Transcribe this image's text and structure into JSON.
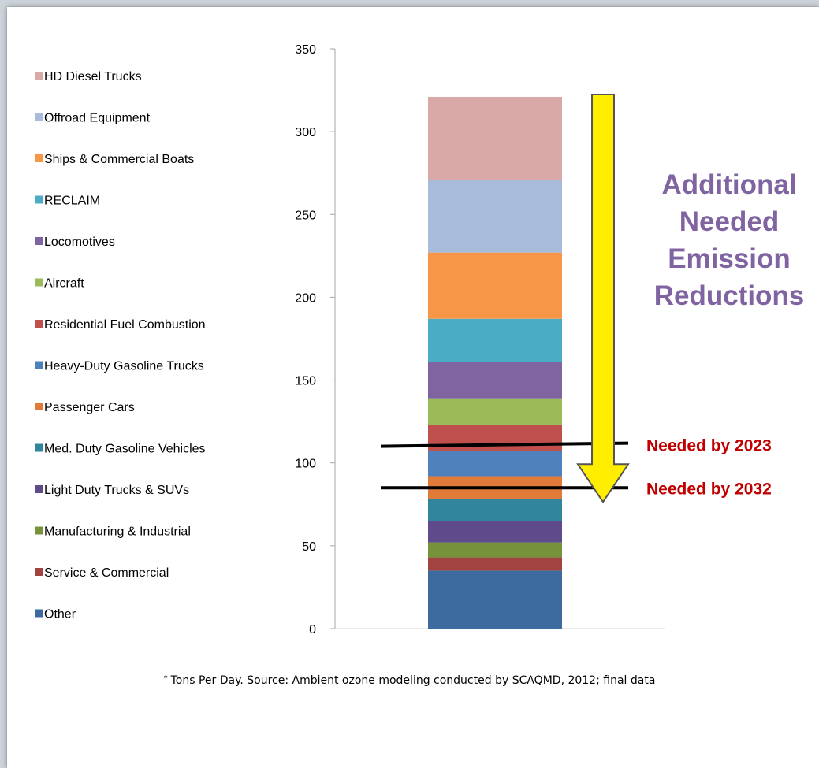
{
  "chart_data": {
    "type": "bar",
    "stacked": true,
    "categories": [
      ""
    ],
    "ylim": [
      0,
      350
    ],
    "yticks": [
      0,
      50,
      100,
      150,
      200,
      250,
      300,
      350
    ],
    "grid": false,
    "legend_position": "left",
    "series": [
      {
        "name": "Other",
        "value": 35,
        "color": "#3d6ba0"
      },
      {
        "name": "Service & Commercial",
        "value": 8,
        "color": "#a3433f"
      },
      {
        "name": "Manufacturing & Industrial",
        "value": 9,
        "color": "#76933c"
      },
      {
        "name": "Light Duty Trucks & SUVs",
        "value": 13,
        "color": "#5f4b8b"
      },
      {
        "name": "Med. Duty Gasoline Vehicles",
        "value": 13,
        "color": "#31859c"
      },
      {
        "name": "Passenger Cars",
        "value": 14,
        "color": "#e07b39"
      },
      {
        "name": "Heavy-Duty Gasoline Trucks",
        "value": 15,
        "color": "#4f81bd"
      },
      {
        "name": "Residential Fuel Combustion",
        "value": 16,
        "color": "#c0504d"
      },
      {
        "name": "Aircraft",
        "value": 16,
        "color": "#9bbb59"
      },
      {
        "name": "Locomotives",
        "value": 22,
        "color": "#8064a2"
      },
      {
        "name": "RECLAIM",
        "value": 26,
        "color": "#4bacc6"
      },
      {
        "name": "Ships & Commercial Boats",
        "value": 40,
        "color": "#f79646"
      },
      {
        "name": "Offroad Equipment",
        "value": 44,
        "color": "#a9bbda"
      },
      {
        "name": "HD Diesel Trucks",
        "value": 50,
        "color": "#d9a9a8"
      }
    ],
    "targets": [
      {
        "label": "Needed by 2023",
        "value": 111
      },
      {
        "label": "Needed by 2032",
        "value": 85
      }
    ],
    "annotation": [
      "Additional",
      "Needed",
      "Emission",
      "Reductions"
    ],
    "colors": {
      "arrow_fill": "#ffee00",
      "arrow_stroke": "#555555",
      "annotation": "#8064a2",
      "target_label": "#c00000"
    }
  },
  "footnote": {
    "marker": "*",
    "text": "Tons Per Day.  Source:  Ambient ozone modeling conducted by SCAQMD,  2012;  final data"
  }
}
